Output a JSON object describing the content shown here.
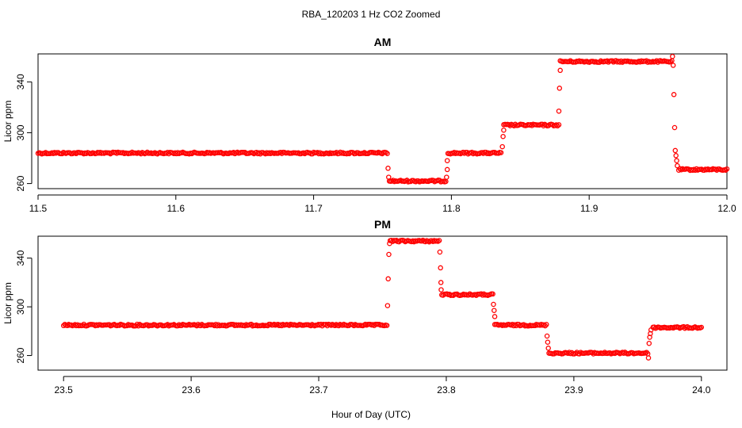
{
  "title": "RBA_120203  1 Hz CO2 Zoomed",
  "xlabel": "Hour of Day (UTC)",
  "colors": {
    "points": "#ff0000",
    "axes": "#000000",
    "background": "#ffffff"
  },
  "chart_data": [
    {
      "type": "scatter",
      "title": "AM",
      "ylabel": "Licor ppm",
      "xlim": [
        11.5,
        12.0
      ],
      "ylim": [
        256,
        362
      ],
      "x_ticks": [
        "11.5",
        "11.6",
        "11.7",
        "11.8",
        "11.9",
        "12.0"
      ],
      "y_ticks": [
        "260",
        "300",
        "340"
      ],
      "x_tick_values": [
        11.5,
        11.6,
        11.7,
        11.8,
        11.9,
        12.0
      ],
      "y_tick_values": [
        260,
        300,
        340
      ],
      "marker": "open-circle",
      "series": [
        {
          "segments": [
            {
              "type": "level",
              "x_start": 11.5,
              "x_end": 11.7535,
              "y": 284
            },
            {
              "type": "transition",
              "points": [
                [
                  11.754,
                  272
                ],
                [
                  11.7545,
                  265
                ],
                [
                  11.755,
                  262
                ]
              ]
            },
            {
              "type": "level",
              "x_start": 11.755,
              "x_end": 11.796,
              "y": 262
            },
            {
              "type": "transition",
              "points": [
                [
                  11.7965,
                  265
                ],
                [
                  11.797,
                  271
                ],
                [
                  11.797,
                  278
                ]
              ]
            },
            {
              "type": "level",
              "x_start": 11.7975,
              "x_end": 11.836,
              "y": 284
            },
            {
              "type": "transition",
              "points": [
                [
                  11.837,
                  289
                ],
                [
                  11.8375,
                  297
                ],
                [
                  11.838,
                  302
                ]
              ]
            },
            {
              "type": "level",
              "x_start": 11.838,
              "x_end": 11.878,
              "y": 306
            },
            {
              "type": "transition",
              "points": [
                [
                  11.878,
                  317
                ],
                [
                  11.8785,
                  335
                ],
                [
                  11.879,
                  349
                ]
              ]
            },
            {
              "type": "level",
              "x_start": 11.879,
              "x_end": 11.96,
              "y": 356
            },
            {
              "type": "transition",
              "points": [
                [
                  11.9605,
                  360
                ],
                [
                  11.961,
                  353
                ],
                [
                  11.9615,
                  330
                ],
                [
                  11.962,
                  304
                ],
                [
                  11.9625,
                  286
                ],
                [
                  11.963,
                  282
                ],
                [
                  11.9635,
                  278
                ],
                [
                  11.964,
                  274
                ]
              ]
            },
            {
              "type": "level",
              "x_start": 11.965,
              "x_end": 12.0,
              "y": 271
            }
          ]
        }
      ]
    },
    {
      "type": "scatter",
      "title": "PM",
      "ylabel": "Licor ppm",
      "xlim": [
        23.48,
        24.02
      ],
      "ylim": [
        248,
        358
      ],
      "x_ticks": [
        "23.5",
        "23.6",
        "23.7",
        "23.8",
        "23.9",
        "24.0"
      ],
      "y_ticks": [
        "260",
        "300",
        "340"
      ],
      "x_tick_values": [
        23.5,
        23.6,
        23.7,
        23.8,
        23.9,
        24.0
      ],
      "y_tick_values": [
        260,
        300,
        340
      ],
      "marker": "open-circle",
      "series": [
        {
          "segments": [
            {
              "type": "level",
              "x_start": 23.5,
              "x_end": 23.7535,
              "y": 285
            },
            {
              "type": "transition",
              "points": [
                [
                  23.754,
                  301
                ],
                [
                  23.7545,
                  323
                ],
                [
                  23.755,
                  343
                ],
                [
                  23.7555,
                  352
                ]
              ]
            },
            {
              "type": "level",
              "x_start": 23.756,
              "x_end": 23.7945,
              "y": 354
            },
            {
              "type": "transition",
              "points": [
                [
                  23.795,
                  345
                ],
                [
                  23.7955,
                  332
                ],
                [
                  23.7958,
                  320
                ],
                [
                  23.796,
                  314
                ]
              ]
            },
            {
              "type": "level",
              "x_start": 23.7965,
              "x_end": 23.8365,
              "y": 310
            },
            {
              "type": "transition",
              "points": [
                [
                  23.837,
                  302
                ],
                [
                  23.8375,
                  297
                ],
                [
                  23.838,
                  292
                ]
              ]
            },
            {
              "type": "level",
              "x_start": 23.838,
              "x_end": 23.8785,
              "y": 285
            },
            {
              "type": "transition",
              "points": [
                [
                  23.879,
                  276
                ],
                [
                  23.8795,
                  271
                ],
                [
                  23.88,
                  266
                ]
              ]
            },
            {
              "type": "level",
              "x_start": 23.8805,
              "x_end": 23.958,
              "y": 262
            },
            {
              "type": "transition",
              "points": [
                [
                  23.9585,
                  258
                ],
                [
                  23.959,
                  270
                ],
                [
                  23.9595,
                  275
                ],
                [
                  23.96,
                  278
                ],
                [
                  23.9605,
                  281
                ]
              ]
            },
            {
              "type": "level",
              "x_start": 23.962,
              "x_end": 24.0,
              "y": 283
            }
          ]
        }
      ]
    }
  ]
}
